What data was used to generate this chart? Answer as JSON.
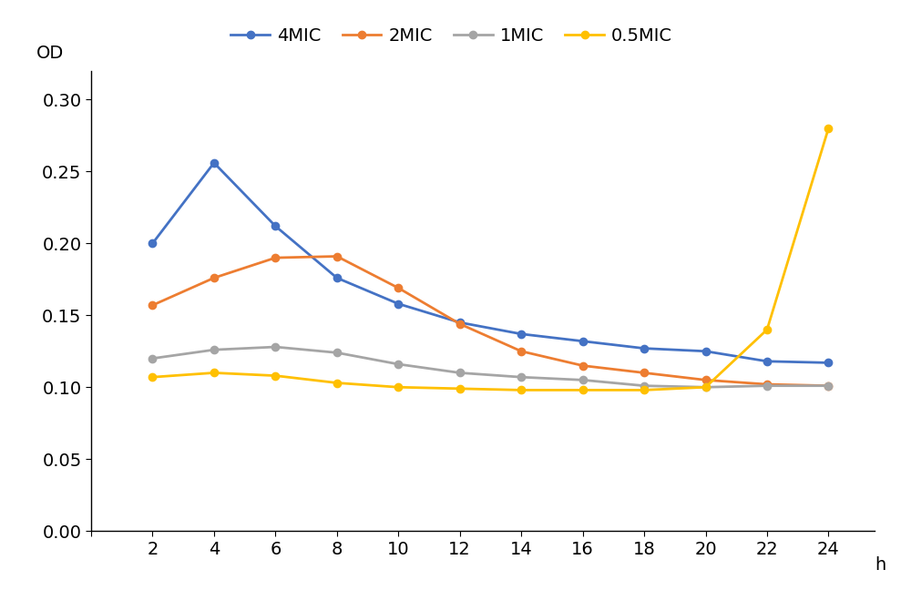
{
  "x": [
    2,
    4,
    6,
    8,
    10,
    12,
    14,
    16,
    18,
    20,
    22,
    24
  ],
  "series": {
    "4MIC": [
      0.2,
      0.256,
      0.212,
      0.176,
      0.158,
      0.145,
      0.137,
      0.132,
      0.127,
      0.125,
      0.118,
      0.117
    ],
    "2MIC": [
      0.157,
      0.176,
      0.19,
      0.191,
      0.169,
      0.144,
      0.125,
      0.115,
      0.11,
      0.105,
      0.102,
      0.101
    ],
    "1MIC": [
      0.12,
      0.126,
      0.128,
      0.124,
      0.116,
      0.11,
      0.107,
      0.105,
      0.101,
      0.1,
      0.101,
      0.101
    ],
    "0.5MIC": [
      0.107,
      0.11,
      0.108,
      0.103,
      0.1,
      0.099,
      0.098,
      0.098,
      0.098,
      0.1,
      0.14,
      0.28
    ]
  },
  "colors": {
    "4MIC": "#4472C4",
    "2MIC": "#ED7D31",
    "1MIC": "#A5A5A5",
    "0.5MIC": "#FFC000"
  },
  "od_label": "OD",
  "h_label": "h",
  "ylim": [
    0.0,
    0.32
  ],
  "yticks": [
    0.0,
    0.05,
    0.1,
    0.15,
    0.2,
    0.25,
    0.3
  ],
  "xlim": [
    0,
    25.5
  ],
  "xticks": [
    0,
    2,
    4,
    6,
    8,
    10,
    12,
    14,
    16,
    18,
    20,
    22,
    24
  ],
  "legend_order": [
    "4MIC",
    "2MIC",
    "1MIC",
    "0.5MIC"
  ],
  "axis_fontsize": 14,
  "legend_fontsize": 14,
  "linewidth": 2.0,
  "markersize": 6
}
